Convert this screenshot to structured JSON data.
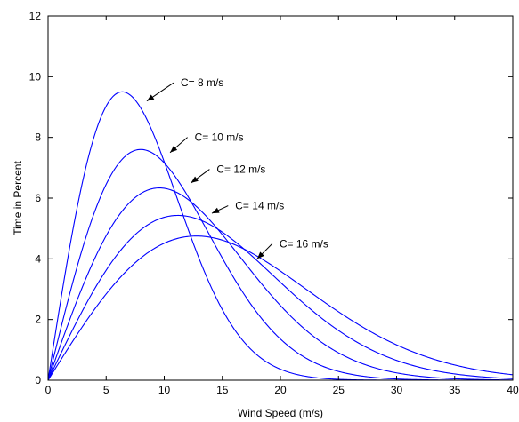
{
  "chart_data": {
    "type": "line",
    "title": "",
    "xlabel": "Wind Speed (m/s)",
    "ylabel": "Time in Percent",
    "xlim": [
      0,
      40
    ],
    "ylim": [
      0,
      12
    ],
    "xticks": [
      0,
      5,
      10,
      15,
      20,
      25,
      30,
      35,
      40
    ],
    "yticks": [
      0,
      2,
      4,
      6,
      8,
      10,
      12
    ],
    "grid": false,
    "legend": "none",
    "line_color": "#0000ff",
    "curve_model": "Rayleigh distribution, percent per m/s",
    "series": [
      {
        "label": "C= 8 m/s",
        "c": 8,
        "x": [
          0,
          2,
          4,
          5.66,
          8,
          10,
          12,
          14,
          16,
          18,
          20,
          25
        ],
        "y": [
          0,
          5.9,
          9.6,
          10.7,
          9.2,
          6.4,
          3.9,
          2.0,
          0.9,
          0.4,
          0.1,
          0.0
        ]
      },
      {
        "label": "C= 10 m/s",
        "c": 10,
        "x": [
          0,
          2,
          4,
          7.07,
          10,
          12,
          14,
          16,
          18,
          20,
          25,
          30
        ],
        "y": [
          0,
          3.9,
          7.2,
          8.6,
          6.6,
          5.0,
          3.6,
          2.3,
          1.4,
          0.7,
          0.1,
          0.0
        ]
      },
      {
        "label": "C= 12 m/s",
        "c": 12,
        "x": [
          0,
          2,
          4,
          8.49,
          12,
          14,
          16,
          18,
          20,
          25,
          30,
          35
        ],
        "y": [
          0,
          2.7,
          5.2,
          7.2,
          5.8,
          4.7,
          3.6,
          2.6,
          1.8,
          0.6,
          0.1,
          0.0
        ]
      },
      {
        "label": "C= 14 m/s",
        "c": 14,
        "x": [
          0,
          2,
          4,
          9.9,
          14,
          16,
          18,
          20,
          25,
          30,
          35,
          40
        ],
        "y": [
          0,
          2.0,
          3.9,
          6.1,
          5.1,
          4.3,
          3.5,
          2.8,
          1.4,
          0.6,
          0.2,
          0.05
        ]
      },
      {
        "label": "C= 16 m/s",
        "c": 16,
        "x": [
          0,
          2,
          4,
          11.31,
          16,
          18,
          20,
          25,
          30,
          35,
          40
        ],
        "y": [
          0,
          1.5,
          3.0,
          5.4,
          4.6,
          4.0,
          3.4,
          2.0,
          1.0,
          0.4,
          0.15
        ]
      }
    ],
    "annotations": [
      {
        "text": "C= 8  m/s",
        "tip": [
          8.5,
          9.2
        ],
        "tail": [
          10.8,
          9.8
        ]
      },
      {
        "text": "C= 10  m/s",
        "tip": [
          10.5,
          7.5
        ],
        "tail": [
          12.0,
          8.0
        ]
      },
      {
        "text": "C= 12  m/s",
        "tip": [
          12.3,
          6.5
        ],
        "tail": [
          13.9,
          6.95
        ]
      },
      {
        "text": "C= 14  m/s",
        "tip": [
          14.1,
          5.5
        ],
        "tail": [
          15.5,
          5.75
        ]
      },
      {
        "text": "C= 16  m/s",
        "tip": [
          18.0,
          4.0
        ],
        "tail": [
          19.3,
          4.5
        ]
      }
    ]
  }
}
